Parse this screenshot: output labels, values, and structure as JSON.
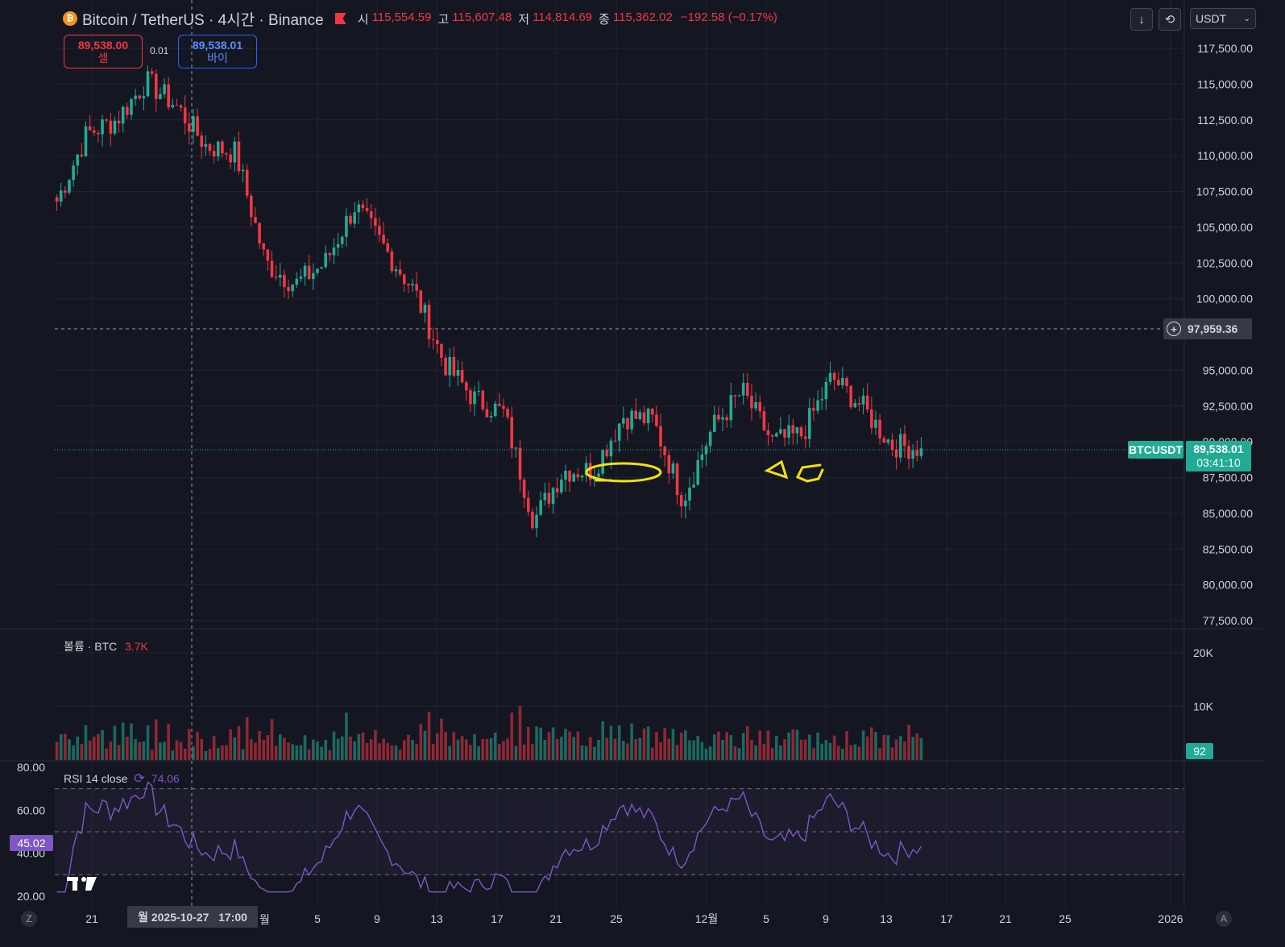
{
  "legend": {
    "coin_icon": "bitcoin-icon",
    "symbol": "Bitcoin / TetherUS · 4시간 · Binance",
    "open_label": "시",
    "open": "115,554.59",
    "high_label": "고",
    "high": "115,607.48",
    "low_label": "저",
    "low": "114,814.69",
    "close_label": "종",
    "close": "115,362.02",
    "change": "−192.58 (−0.17%)"
  },
  "trade": {
    "sell_price": "89,538.00",
    "sell_label": "셀",
    "size": "0.01",
    "buy_price": "89,538.01",
    "buy_label": "바이"
  },
  "toolbar": {
    "currency": "USDT",
    "download_icon": "download-icon",
    "refresh_icon": "refresh-icon"
  },
  "price_axis": {
    "ticks": [
      "117,500.00",
      "115,000.00",
      "112,500.00",
      "110,000.00",
      "107,500.00",
      "105,000.00",
      "102,500.00",
      "100,000.00",
      "95,000.00",
      "92,500.00",
      "90,000.00",
      "87,500.00",
      "85,000.00",
      "82,500.00",
      "80,000.00",
      "77,500.00"
    ],
    "crosshair_price": "97,959.36",
    "symbol_tag": "BTCUSDT",
    "last_price": "89,538.01",
    "countdown": "03:41:10"
  },
  "volume": {
    "label": "볼륨 · BTC",
    "value": "3.7K",
    "ticks": [
      "20K",
      "10K"
    ],
    "last_tag": "92"
  },
  "rsi": {
    "label": "RSI 14 close",
    "value": "74.06",
    "ticks": [
      "80.00",
      "60.00",
      "40.00",
      "20.00"
    ],
    "current_tag": "45.02"
  },
  "time_axis": {
    "ticks": [
      "21",
      "5",
      "9",
      "13",
      "17",
      "21",
      "25",
      "12월",
      "5",
      "9",
      "13",
      "17",
      "21",
      "25",
      "2026"
    ],
    "crosshair_label": "월 2025-10-27   17:00",
    "partial_label": "월",
    "z_button": "Z",
    "a_button": "A"
  },
  "colors": {
    "up": "#22ab94",
    "down": "#f23645",
    "rsi": "#7e57c2",
    "annotation": "#f5e20a",
    "background": "#141721"
  },
  "chart_data": {
    "type": "candlestick",
    "series_anchors": {
      "x": [
        "10/17",
        "10/21",
        "10/25",
        "10/27",
        "10/29",
        "11/1",
        "11/3",
        "11/5",
        "11/7",
        "11/9",
        "11/11",
        "11/12",
        "11/14",
        "11/17",
        "11/19",
        "11/20",
        "11/22",
        "11/24",
        "11/26",
        "11/28",
        "11/30",
        "12/1",
        "12/2",
        "12/4",
        "12/6",
        "12/8",
        "12/10",
        "12/12",
        "12/14",
        "12/15"
      ],
      "close": [
        106800,
        111500,
        112500,
        115200,
        113500,
        110700,
        110200,
        102500,
        101000,
        102500,
        106500,
        103500,
        100500,
        95500,
        93000,
        92000,
        84500,
        88000,
        88000,
        91800,
        91500,
        86000,
        91000,
        93500,
        90000,
        90500,
        94500,
        92500,
        89800,
        89538
      ]
    },
    "volume_ylim": [
      0,
      23000
    ],
    "rsi_ylim": [
      20,
      80
    ],
    "rsi_bands": [
      30,
      50,
      70
    ],
    "price_ylim": [
      77500,
      117500
    ]
  }
}
